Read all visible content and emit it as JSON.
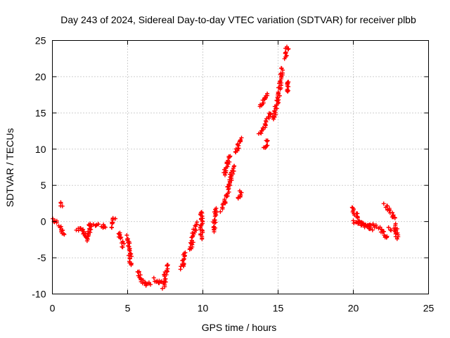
{
  "chart_data": {
    "type": "scatter",
    "title": "Day 243 of 2024, Sidereal Day-to-day VTEC variation (SDTVAR) for receiver plbb",
    "xlabel": "GPS time / hours",
    "ylabel": "SDTVAR / TECUs",
    "xlim": [
      0,
      25
    ],
    "ylim": [
      -10,
      25
    ],
    "xticks": [
      "0",
      "5",
      "10",
      "15",
      "20",
      "25"
    ],
    "yticks": [
      "-10",
      "-5",
      "0",
      "5",
      "10",
      "15",
      "20",
      "25"
    ],
    "grid": true,
    "marker": "+",
    "series": [
      {
        "name": "SDTVAR",
        "color": "#ff0000",
        "segments": [
          [
            [
              0.0,
              0.3
            ],
            [
              0.15,
              0.2
            ],
            [
              0.25,
              0.0
            ]
          ],
          [
            [
              0.5,
              2.5
            ],
            [
              0.6,
              2.3
            ]
          ],
          [
            [
              0.5,
              -0.6
            ],
            [
              0.6,
              -1.2
            ],
            [
              0.7,
              -1.8
            ]
          ],
          [
            [
              1.6,
              -1.0
            ],
            [
              2.0,
              -1.2
            ],
            [
              2.3,
              -2.5
            ],
            [
              2.5,
              -1.0
            ],
            [
              2.5,
              -0.2
            ]
          ],
          [
            [
              2.8,
              -0.5
            ],
            [
              3.0,
              -0.3
            ],
            [
              3.3,
              -0.6
            ],
            [
              3.5,
              -0.7
            ]
          ],
          [
            [
              3.9,
              -0.8
            ],
            [
              4.0,
              0.0
            ],
            [
              4.1,
              0.5
            ]
          ],
          [
            [
              4.4,
              -1.5
            ],
            [
              4.6,
              -2.5
            ],
            [
              4.7,
              -3.3
            ]
          ],
          [
            [
              5.0,
              -2.0
            ],
            [
              5.1,
              -3.5
            ],
            [
              5.2,
              -5.8
            ]
          ],
          [
            [
              5.7,
              -6.8
            ],
            [
              5.9,
              -8.0
            ],
            [
              6.2,
              -8.8
            ],
            [
              6.5,
              -8.5
            ]
          ],
          [
            [
              6.8,
              -8.0
            ],
            [
              7.0,
              -8.5
            ],
            [
              7.2,
              -8.3
            ]
          ],
          [
            [
              7.4,
              -9.0
            ],
            [
              7.5,
              -7.5
            ],
            [
              7.6,
              -6.0
            ]
          ],
          [
            [
              8.6,
              -6.5
            ],
            [
              8.7,
              -5.5
            ],
            [
              8.8,
              -4.5
            ]
          ],
          [
            [
              9.2,
              -4.0
            ],
            [
              9.3,
              -2.8
            ],
            [
              9.4,
              -1.5
            ],
            [
              9.6,
              -0.3
            ]
          ],
          [
            [
              9.9,
              1.5
            ],
            [
              9.9,
              -0.5
            ],
            [
              9.9,
              -2.2
            ]
          ],
          [
            [
              10.7,
              -1.5
            ],
            [
              10.8,
              0.5
            ],
            [
              10.9,
              1.8
            ]
          ],
          [
            [
              11.2,
              1.5
            ],
            [
              11.5,
              3.0
            ],
            [
              11.8,
              5.5
            ],
            [
              12.0,
              7.5
            ]
          ],
          [
            [
              11.4,
              6.5
            ],
            [
              11.6,
              8.0
            ],
            [
              11.8,
              9.0
            ]
          ],
          [
            [
              12.2,
              9.5
            ],
            [
              12.4,
              11.0
            ],
            [
              12.5,
              11.5
            ]
          ],
          [
            [
              12.4,
              3.0
            ],
            [
              12.5,
              4.0
            ]
          ],
          [
            [
              13.7,
              16.0
            ],
            [
              14.0,
              16.5
            ],
            [
              14.3,
              17.5
            ]
          ],
          [
            [
              13.8,
              12.0
            ],
            [
              14.2,
              13.5
            ],
            [
              14.5,
              15.0
            ]
          ],
          [
            [
              14.1,
              10.0
            ],
            [
              14.3,
              11.0
            ]
          ],
          [
            [
              14.7,
              14.0
            ],
            [
              15.0,
              17.0
            ],
            [
              15.2,
              20.0
            ],
            [
              15.3,
              21.0
            ]
          ],
          [
            [
              15.5,
              22.5
            ],
            [
              15.6,
              24.0
            ]
          ],
          [
            [
              15.6,
              19.5
            ],
            [
              15.6,
              18.0
            ]
          ],
          [
            [
              19.9,
              2.0
            ],
            [
              20.3,
              0.5
            ],
            [
              20.7,
              -0.5
            ],
            [
              21.2,
              -1.0
            ]
          ],
          [
            [
              20.0,
              0.0
            ],
            [
              20.5,
              -0.3
            ],
            [
              21.0,
              -0.5
            ],
            [
              21.5,
              -0.6
            ]
          ],
          [
            [
              21.7,
              -0.8
            ],
            [
              22.0,
              -1.5
            ],
            [
              22.3,
              -2.2
            ]
          ],
          [
            [
              22.1,
              2.3
            ],
            [
              22.4,
              1.5
            ],
            [
              22.7,
              0.5
            ]
          ],
          [
            [
              22.4,
              -1.0
            ],
            [
              22.7,
              -1.2
            ]
          ],
          [
            [
              22.8,
              -0.5
            ],
            [
              22.9,
              -2.2
            ]
          ]
        ]
      }
    ]
  }
}
